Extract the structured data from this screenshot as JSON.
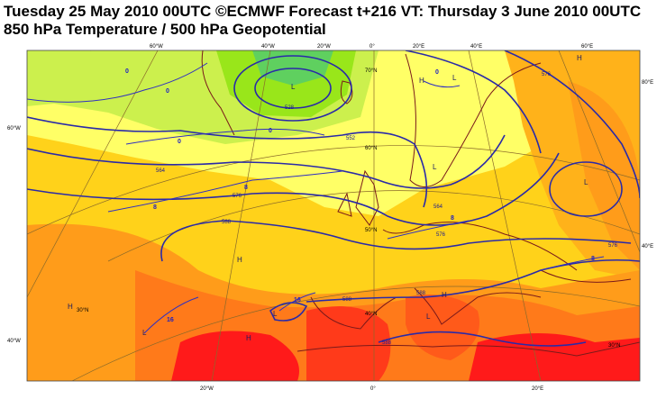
{
  "title": {
    "line1": "Tuesday 25 May 2010 00UTC ©ECMWF Forecast t+216 VT: Thursday 3 June 2010 00UTC",
    "line2": "850 hPa Temperature / 500 hPa Geopotential"
  },
  "graticule": {
    "top_labels": [
      "60°W",
      "40°W",
      "20°W",
      "0°",
      "20°E",
      "40°E",
      "60°E"
    ],
    "bottom_labels": [
      "20°W",
      "0°",
      "20°E"
    ],
    "left_labels": [
      "60°W",
      "40°W"
    ],
    "right_labels": [
      "80°E",
      "40°E"
    ],
    "lat_labels": [
      "70°N",
      "60°N",
      "50°N",
      "40°N",
      "30°N",
      "30°N"
    ]
  },
  "contours": {
    "geopotential": [
      "528",
      "552",
      "564",
      "576",
      "588",
      "576",
      "588",
      "576",
      "588",
      "576",
      "588",
      "564"
    ],
    "temperature": [
      "0",
      "0",
      "0",
      "0",
      "0",
      "8",
      "8",
      "8",
      "8",
      "16",
      "16"
    ]
  },
  "pressure_centres": [
    "L",
    "L",
    "L",
    "L",
    "L",
    "L",
    "L",
    "H",
    "H",
    "H",
    "H",
    "H",
    "H"
  ],
  "colors": {
    "cold": "#99e61a",
    "cool": "#ccf04d",
    "neutral": "#ffff66",
    "mild": "#ffd21a",
    "warm": "#ff9c1a",
    "hot": "#ff5a1a",
    "very_hot": "#ff1a1a",
    "coast": "#7a1a1a",
    "isoline": "#2a2aa8"
  }
}
